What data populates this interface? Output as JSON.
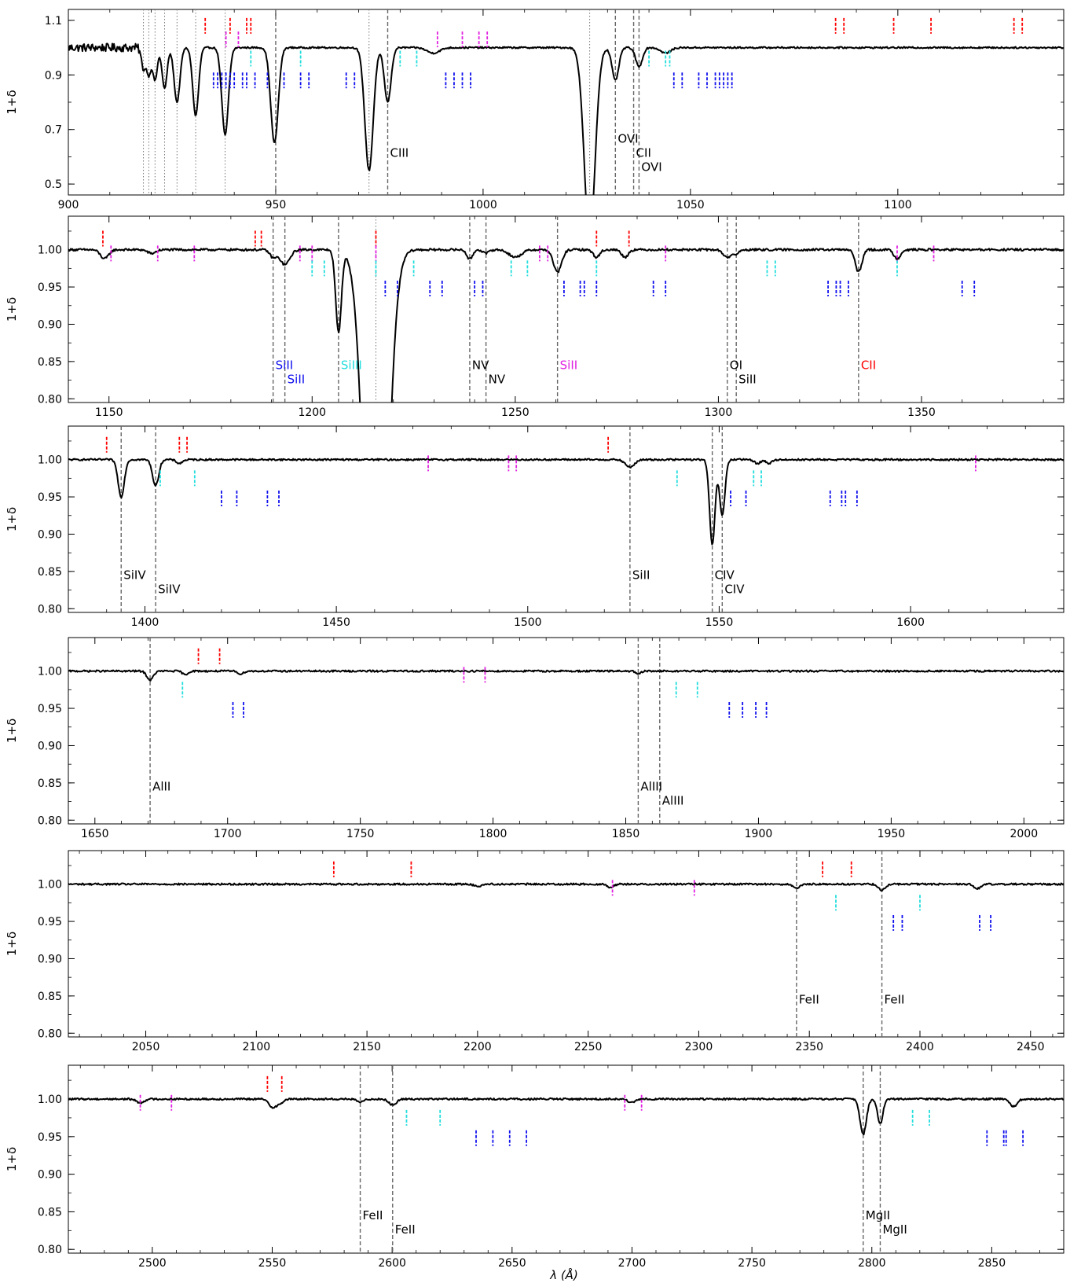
{
  "figure": {
    "xlabel": "λ (Å)",
    "ylabel": "1+δ"
  },
  "colors": {
    "spectrum": "#000000",
    "absorber_line": "#666666",
    "red": "#ff0000",
    "magenta": "#e020e0",
    "cyan": "#22dddd",
    "blue": "#1010ee",
    "label_black": "#000000",
    "label_blue": "#1010ee",
    "label_cyan": "#22dddd",
    "label_magenta": "#e020e0",
    "label_red": "#ff0000"
  },
  "chart_data": [
    {
      "type": "line",
      "xlim": [
        900,
        1140
      ],
      "ylim": [
        0.46,
        1.14
      ],
      "xticks": [
        900,
        950,
        1000,
        1050,
        1100
      ],
      "yticks": [
        0.5,
        0.7,
        0.9,
        1.1
      ],
      "spectrum": {
        "continuum": 1.0,
        "noise": 0.015,
        "noise_until": 918,
        "absorptions": [
          [
            918.1,
            0.08,
            0.5
          ],
          [
            919.4,
            0.1,
            0.5
          ],
          [
            920.9,
            0.12,
            0.55
          ],
          [
            923.2,
            0.15,
            0.6
          ],
          [
            926.2,
            0.2,
            0.7
          ],
          [
            930.7,
            0.25,
            0.7
          ],
          [
            937.8,
            0.32,
            0.8
          ],
          [
            949.7,
            0.35,
            0.9
          ],
          [
            972.5,
            0.45,
            1.0
          ],
          [
            977.0,
            0.2,
            0.8
          ],
          [
            1025.7,
            0.7,
            1.3
          ],
          [
            1031.9,
            0.12,
            0.8
          ],
          [
            1037.6,
            0.07,
            0.8
          ],
          [
            988.0,
            0.02,
            1.5
          ],
          [
            1044.0,
            0.02,
            1.2
          ]
        ]
      },
      "absorber_lines": [
        {
          "x": 950.0,
          "label": "",
          "color": "label_black",
          "level": 0
        },
        {
          "x": 977.0,
          "label": "CIII",
          "color": "label_black",
          "level": 0
        },
        {
          "x": 1031.9,
          "label": "OVI",
          "color": "label_black",
          "level": -1
        },
        {
          "x": 1036.3,
          "label": "CII",
          "color": "label_black",
          "level": 0
        },
        {
          "x": 1037.6,
          "label": "OVI",
          "color": "label_black",
          "level": 1
        }
      ],
      "dotted_lines": [
        918.1,
        919.4,
        920.9,
        923.2,
        926.2,
        930.7,
        937.8,
        972.5,
        1025.7
      ],
      "ticks": {
        "red": {
          "y": 1.08,
          "x": [
            933,
            939,
            943,
            944,
            1085,
            1087,
            1099,
            1108,
            1128,
            1130
          ]
        },
        "magenta": {
          "y": 1.03,
          "x": [
            938,
            941,
            989,
            995,
            999,
            1001
          ]
        },
        "cyan": {
          "y": 0.96,
          "x": [
            944,
            956,
            980,
            984,
            1040,
            1044,
            1045
          ]
        },
        "blue": {
          "y": 0.88,
          "x": [
            935,
            936,
            937,
            938,
            939,
            940,
            942,
            943,
            945,
            948,
            952,
            956,
            958,
            967,
            969,
            991,
            993,
            995,
            997,
            1046,
            1048,
            1052,
            1054,
            1056,
            1057,
            1058,
            1059,
            1060
          ]
        }
      }
    },
    {
      "type": "line",
      "xlim": [
        1140,
        1385
      ],
      "ylim": [
        0.795,
        1.045
      ],
      "xticks": [
        1150,
        1200,
        1250,
        1300,
        1350
      ],
      "yticks": [
        0.8,
        0.85,
        0.9,
        0.95,
        1.0
      ],
      "spectrum": {
        "continuum": 1.0,
        "noise": 0.0015,
        "absorptions": [
          [
            1148.9,
            0.012,
            1.0
          ],
          [
            1160.5,
            0.005,
            1.0
          ],
          [
            1190.4,
            0.01,
            0.8
          ],
          [
            1193.3,
            0.02,
            1.2
          ],
          [
            1206.5,
            0.11,
            0.7
          ],
          [
            1215.7,
            0.7,
            2.5
          ],
          [
            1238.8,
            0.013,
            0.7
          ],
          [
            1242.8,
            0.005,
            0.7
          ],
          [
            1260.4,
            0.03,
            1.0
          ],
          [
            1270.0,
            0.01,
            0.8
          ],
          [
            1277.0,
            0.01,
            0.8
          ],
          [
            1302.2,
            0.01,
            1.0
          ],
          [
            1304.4,
            0.005,
            0.8
          ],
          [
            1334.5,
            0.03,
            0.8
          ],
          [
            1344.0,
            0.012,
            0.8
          ],
          [
            1250.0,
            0.01,
            1.5
          ]
        ]
      },
      "absorber_lines": [
        {
          "x": 1190.4,
          "label": "SiII",
          "color": "label_blue",
          "level": 0
        },
        {
          "x": 1193.3,
          "label": "SiII",
          "color": "label_blue",
          "level": 1
        },
        {
          "x": 1206.5,
          "label": "SiIII",
          "color": "label_cyan",
          "level": 0
        },
        {
          "x": 1238.8,
          "label": "NV",
          "color": "label_black",
          "level": 0
        },
        {
          "x": 1242.8,
          "label": "NV",
          "color": "label_black",
          "level": 1
        },
        {
          "x": 1260.4,
          "label": "SiII",
          "color": "label_magenta",
          "level": 0
        },
        {
          "x": 1302.2,
          "label": "OI",
          "color": "label_black",
          "level": 0
        },
        {
          "x": 1304.4,
          "label": "SiII",
          "color": "label_black",
          "level": 1
        },
        {
          "x": 1334.5,
          "label": "CII",
          "color": "label_red",
          "level": 0
        }
      ],
      "dotted_lines": [
        1215.7
      ],
      "ticks": {
        "red": {
          "y": 1.015,
          "x": [
            1148.5,
            1186,
            1187.5,
            1215.7,
            1270,
            1278
          ]
        },
        "magenta": {
          "y": 0.995,
          "x": [
            1150.5,
            1162,
            1171,
            1197,
            1200,
            1215.7,
            1256,
            1258,
            1287,
            1344,
            1353
          ]
        },
        "cyan": {
          "y": 0.975,
          "x": [
            1200,
            1203,
            1215.7,
            1225,
            1249,
            1253,
            1270,
            1312,
            1314,
            1344
          ]
        },
        "blue": {
          "y": 0.948,
          "x": [
            1218,
            1221,
            1229,
            1232,
            1240,
            1242,
            1262,
            1266,
            1267,
            1270,
            1284,
            1287,
            1327,
            1329,
            1330,
            1332,
            1360,
            1363
          ]
        }
      }
    },
    {
      "type": "line",
      "xlim": [
        1380,
        1640
      ],
      "ylim": [
        0.795,
        1.045
      ],
      "xticks": [
        1400,
        1450,
        1500,
        1550,
        1600
      ],
      "yticks": [
        0.8,
        0.85,
        0.9,
        0.95,
        1.0
      ],
      "spectrum": {
        "continuum": 1.0,
        "noise": 0.0012,
        "absorptions": [
          [
            1393.8,
            0.05,
            0.8
          ],
          [
            1402.8,
            0.035,
            0.8
          ],
          [
            1526.7,
            0.01,
            1.2
          ],
          [
            1548.2,
            0.115,
            0.7
          ],
          [
            1550.8,
            0.075,
            0.7
          ],
          [
            1560.0,
            0.005,
            0.8
          ],
          [
            1409.0,
            0.005,
            0.8
          ],
          [
            1563.0,
            0.005,
            0.8
          ]
        ]
      },
      "absorber_lines": [
        {
          "x": 1393.8,
          "label": "SiIV",
          "color": "label_black",
          "level": 0
        },
        {
          "x": 1402.8,
          "label": "SiIV",
          "color": "label_black",
          "level": 1
        },
        {
          "x": 1526.7,
          "label": "SiII",
          "color": "label_black",
          "level": 0
        },
        {
          "x": 1548.2,
          "label": "CIV",
          "color": "label_black",
          "level": 0
        },
        {
          "x": 1550.8,
          "label": "CIV",
          "color": "label_black",
          "level": 1
        }
      ],
      "dotted_lines": [],
      "ticks": {
        "red": {
          "y": 1.02,
          "x": [
            1390,
            1409,
            1411,
            1521
          ]
        },
        "magenta": {
          "y": 0.995,
          "x": [
            1474,
            1495,
            1497,
            1617
          ]
        },
        "cyan": {
          "y": 0.975,
          "x": [
            1404,
            1413,
            1539,
            1559,
            1561
          ]
        },
        "blue": {
          "y": 0.948,
          "x": [
            1420,
            1424,
            1432,
            1435,
            1553,
            1557,
            1579,
            1582,
            1583,
            1586
          ]
        }
      }
    },
    {
      "type": "line",
      "xlim": [
        1640,
        2015
      ],
      "ylim": [
        0.795,
        1.045
      ],
      "xticks": [
        1650,
        1700,
        1750,
        1800,
        1850,
        1900,
        1950,
        2000
      ],
      "yticks": [
        0.8,
        0.85,
        0.9,
        0.95,
        1.0
      ],
      "spectrum": {
        "continuum": 1.0,
        "noise": 0.0012,
        "absorptions": [
          [
            1670.8,
            0.012,
            1.2
          ],
          [
            1684.0,
            0.005,
            1.0
          ],
          [
            1705.0,
            0.004,
            1.0
          ],
          [
            1854.7,
            0.004,
            1.0
          ]
        ]
      },
      "absorber_lines": [
        {
          "x": 1670.8,
          "label": "AlII",
          "color": "label_black",
          "level": 0
        },
        {
          "x": 1854.7,
          "label": "AlIII",
          "color": "label_black",
          "level": 0
        },
        {
          "x": 1862.8,
          "label": "AlIII",
          "color": "label_black",
          "level": 1
        }
      ],
      "dotted_lines": [],
      "ticks": {
        "red": {
          "y": 1.02,
          "x": [
            1689,
            1697
          ]
        },
        "magenta": {
          "y": 0.995,
          "x": [
            1789,
            1797
          ]
        },
        "cyan": {
          "y": 0.975,
          "x": [
            1683,
            1869,
            1877
          ]
        },
        "blue": {
          "y": 0.948,
          "x": [
            1702,
            1706,
            1889,
            1894,
            1899,
            1903
          ]
        }
      }
    },
    {
      "type": "line",
      "xlim": [
        2015,
        2465
      ],
      "ylim": [
        0.795,
        1.045
      ],
      "xticks": [
        2050,
        2100,
        2150,
        2200,
        2250,
        2300,
        2350,
        2400,
        2450
      ],
      "yticks": [
        0.8,
        0.85,
        0.9,
        0.95,
        1.0
      ],
      "spectrum": {
        "continuum": 1.0,
        "noise": 0.0012,
        "absorptions": [
          [
            2344.2,
            0.006,
            1.5
          ],
          [
            2382.8,
            0.008,
            1.5
          ],
          [
            2426.0,
            0.006,
            1.5
          ],
          [
            2260.0,
            0.004,
            1.5
          ],
          [
            2200.0,
            0.003,
            1.5
          ]
        ]
      },
      "absorber_lines": [
        {
          "x": 2344.2,
          "label": "FeII",
          "color": "label_black",
          "level": 0
        },
        {
          "x": 2382.8,
          "label": "FeII",
          "color": "label_black",
          "level": 0
        }
      ],
      "dotted_lines": [],
      "ticks": {
        "red": {
          "y": 1.02,
          "x": [
            2135,
            2170,
            2356,
            2369
          ]
        },
        "magenta": {
          "y": 0.995,
          "x": [
            2261,
            2298
          ]
        },
        "cyan": {
          "y": 0.975,
          "x": [
            2362,
            2400
          ]
        },
        "blue": {
          "y": 0.948,
          "x": [
            2388,
            2392,
            2427,
            2432
          ]
        }
      }
    },
    {
      "type": "line",
      "xlim": [
        2465,
        2880
      ],
      "ylim": [
        0.795,
        1.045
      ],
      "xticks": [
        2500,
        2550,
        2600,
        2650,
        2700,
        2750,
        2800,
        2850
      ],
      "yticks": [
        0.8,
        0.85,
        0.9,
        0.95,
        1.0
      ],
      "spectrum": {
        "continuum": 1.0,
        "noise": 0.0012,
        "absorptions": [
          [
            2796.4,
            0.047,
            1.3
          ],
          [
            2803.5,
            0.033,
            1.1
          ],
          [
            2600.2,
            0.008,
            1.5
          ],
          [
            2586.7,
            0.004,
            1.5
          ],
          [
            2550.0,
            0.01,
            1.5
          ],
          [
            2553.0,
            0.006,
            1.5
          ],
          [
            2859.0,
            0.01,
            1.5
          ],
          [
            2495.0,
            0.005,
            1.5
          ],
          [
            2700.0,
            0.005,
            1.5
          ]
        ]
      },
      "absorber_lines": [
        {
          "x": 2586.7,
          "label": "FeII",
          "color": "label_black",
          "level": 0
        },
        {
          "x": 2600.2,
          "label": "FeII",
          "color": "label_black",
          "level": 1
        },
        {
          "x": 2796.4,
          "label": "MgII",
          "color": "label_black",
          "level": 0
        },
        {
          "x": 2803.5,
          "label": "MgII",
          "color": "label_black",
          "level": 1
        }
      ],
      "dotted_lines": [],
      "ticks": {
        "red": {
          "y": 1.02,
          "x": [
            2548,
            2554
          ]
        },
        "magenta": {
          "y": 0.995,
          "x": [
            2495,
            2508,
            2697,
            2704
          ]
        },
        "cyan": {
          "y": 0.975,
          "x": [
            2606,
            2620,
            2817,
            2824
          ]
        },
        "blue": {
          "y": 0.948,
          "x": [
            2635,
            2642,
            2649,
            2656,
            2848,
            2855,
            2856,
            2863
          ]
        }
      }
    }
  ]
}
